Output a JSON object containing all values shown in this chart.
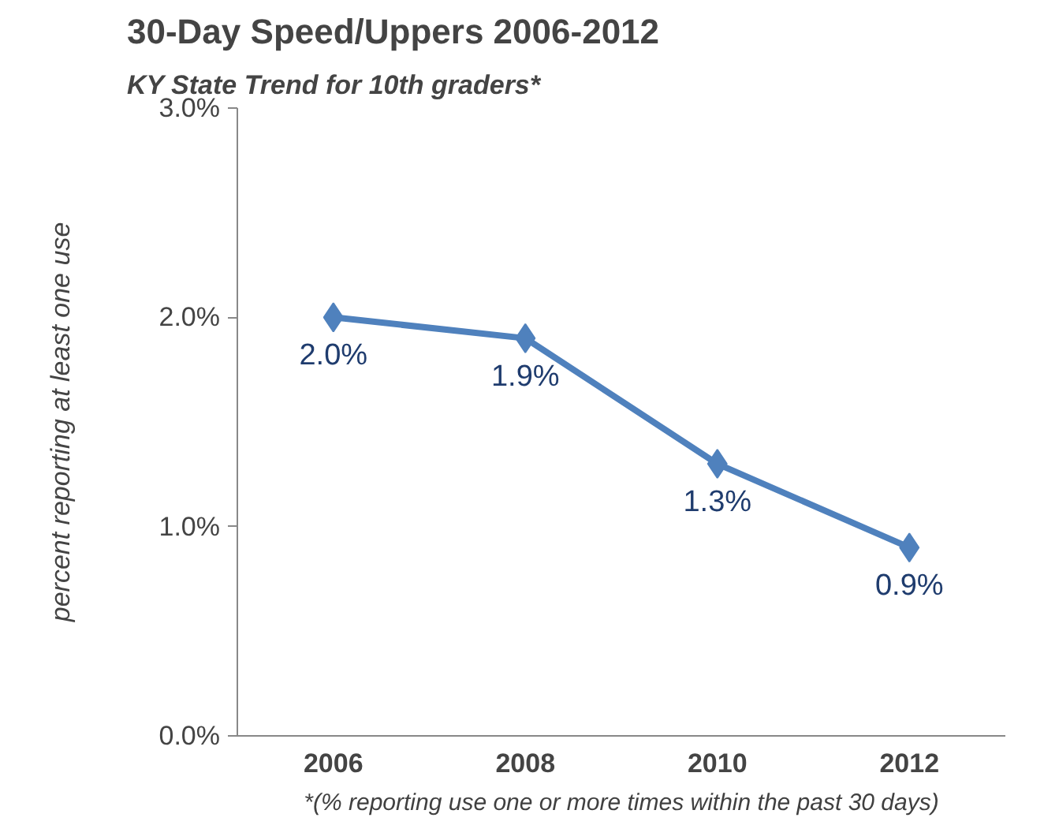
{
  "chart_data": {
    "type": "line",
    "title": "30-Day Speed/Uppers 2006-2012",
    "subtitle": "KY State Trend for 10th graders*",
    "ylabel": "percent reporting at least one use",
    "annotations": [
      "*(% reporting use one or more times within the past 30 days)"
    ],
    "categories": [
      "2006",
      "2008",
      "2010",
      "2012"
    ],
    "series": [
      {
        "color": "#4f81bd",
        "values": [
          2.0,
          1.9,
          1.3,
          0.9
        ]
      }
    ],
    "value_labels": [
      "2.0%",
      "1.9%",
      "1.3%",
      "0.9%"
    ],
    "ylim": [
      0,
      3
    ],
    "yticks": [
      {
        "value": 0,
        "label": "0.0%"
      },
      {
        "value": 1,
        "label": "1.0%"
      },
      {
        "value": 2,
        "label": "2.0%"
      },
      {
        "value": 3,
        "label": "3.0%"
      }
    ],
    "marker": "diamond",
    "line_style": "solid",
    "grid": false
  }
}
